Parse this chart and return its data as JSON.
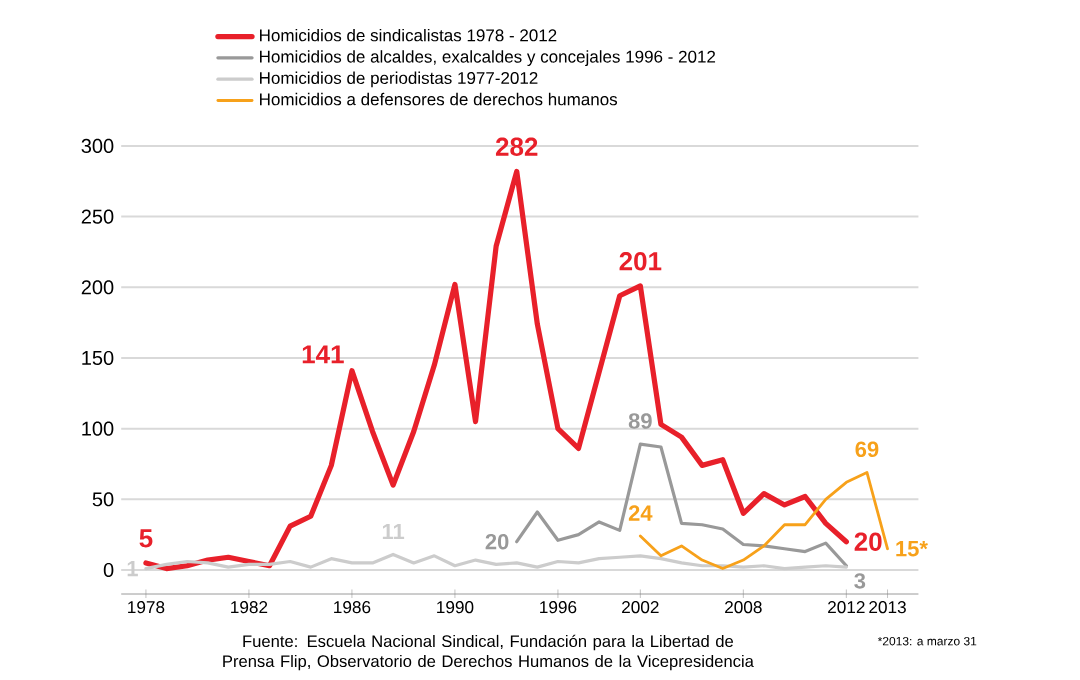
{
  "chart_data": {
    "type": "line",
    "categories": [
      "1978",
      null,
      null,
      null,
      null,
      "1982",
      null,
      null,
      null,
      null,
      "1986",
      null,
      null,
      null,
      null,
      "1990",
      null,
      null,
      null,
      null,
      "1996",
      null,
      null,
      null,
      "2002",
      null,
      null,
      null,
      null,
      "2008",
      null,
      null,
      null,
      null,
      "2012",
      null,
      "2013"
    ],
    "series": [
      {
        "name": "Homicidios de sindicalistas 1978 - 2012",
        "color": "#e8202a",
        "values": [
          5,
          1,
          3,
          7,
          9,
          6,
          3,
          31,
          38,
          74,
          141,
          98,
          60,
          98,
          145,
          202,
          105,
          229,
          282,
          174,
          100,
          86,
          140,
          194,
          201,
          103,
          94,
          74,
          78,
          40,
          54,
          46,
          52,
          33,
          20,
          null,
          null
        ],
        "value_labels": [
          "5",
          null,
          null,
          null,
          null,
          null,
          null,
          null,
          null,
          null,
          "141",
          null,
          null,
          null,
          null,
          null,
          null,
          null,
          "282",
          null,
          null,
          null,
          null,
          null,
          "201",
          null,
          null,
          null,
          null,
          null,
          null,
          null,
          null,
          null,
          "20",
          null,
          null
        ]
      },
      {
        "name": "Homicidios de alcaldes, exalcaldes y concejales 1996 - 2012",
        "color": "#999999",
        "values": [
          null,
          null,
          null,
          null,
          null,
          null,
          null,
          null,
          null,
          null,
          null,
          null,
          null,
          null,
          null,
          null,
          null,
          null,
          20,
          41,
          21,
          25,
          34,
          28,
          89,
          87,
          33,
          32,
          29,
          18,
          17,
          15,
          13,
          19,
          3,
          null,
          null
        ],
        "value_labels": [
          null,
          null,
          null,
          null,
          null,
          null,
          null,
          null,
          null,
          null,
          null,
          null,
          null,
          null,
          null,
          null,
          null,
          null,
          "20",
          null,
          null,
          null,
          null,
          null,
          "89",
          null,
          null,
          null,
          null,
          null,
          null,
          null,
          null,
          null,
          "3",
          null,
          null
        ]
      },
      {
        "name": "Homicidios de periodistas 1977-2012",
        "color": "#cccccc",
        "values": [
          1,
          4,
          6,
          5,
          2,
          4,
          4,
          6,
          2,
          8,
          5,
          5,
          11,
          5,
          10,
          3,
          7,
          4,
          5,
          2,
          6,
          5,
          8,
          9,
          10,
          8,
          5,
          3,
          3,
          2,
          3,
          1,
          2,
          3,
          2,
          null,
          null
        ],
        "value_labels": [
          "1",
          null,
          null,
          null,
          null,
          null,
          null,
          null,
          null,
          null,
          null,
          null,
          "11",
          null,
          null,
          null,
          null,
          null,
          null,
          null,
          null,
          null,
          null,
          null,
          null,
          null,
          null,
          null,
          null,
          null,
          null,
          null,
          null,
          null,
          null,
          null,
          null
        ]
      },
      {
        "name": "Homicidios a defensores de derechos humanos",
        "color": "#f7a11a",
        "values": [
          null,
          null,
          null,
          null,
          null,
          null,
          null,
          null,
          null,
          null,
          null,
          null,
          null,
          null,
          null,
          null,
          null,
          null,
          null,
          null,
          null,
          null,
          null,
          null,
          24,
          10,
          17,
          7,
          1,
          7,
          17,
          32,
          32,
          50,
          62,
          69,
          15
        ],
        "value_labels": [
          null,
          null,
          null,
          null,
          null,
          null,
          null,
          null,
          null,
          null,
          null,
          null,
          null,
          null,
          null,
          null,
          null,
          null,
          null,
          null,
          null,
          null,
          null,
          null,
          "24",
          null,
          null,
          null,
          null,
          null,
          null,
          null,
          null,
          null,
          null,
          "69",
          "15*"
        ]
      }
    ],
    "ylim": [
      -17,
      300
    ],
    "yticks": [
      0,
      50,
      100,
      150,
      200,
      250,
      300
    ],
    "grid": "y",
    "legend": "top",
    "annotations": [
      "Fuente: Escuela Nacional Sindical, Fundación para la Libertad de Prensa Flip, Observatorio de Derechos Humanos de la Vicepresidencia",
      "*2013: a marzo 31"
    ]
  }
}
